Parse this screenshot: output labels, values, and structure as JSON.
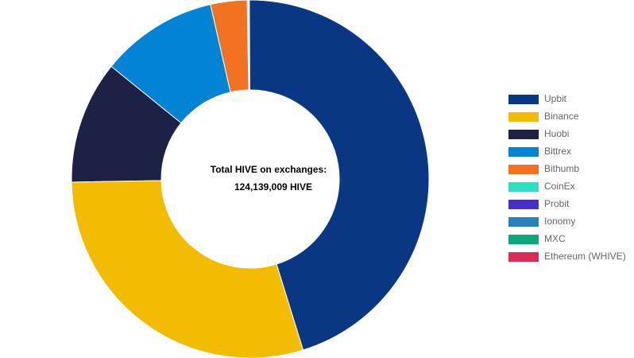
{
  "chart_data": {
    "type": "doughnut",
    "center_title": "Total HIVE on exchanges:",
    "center_value": "124,139,009 HIVE",
    "categories": [
      "Upbit",
      "Binance",
      "Huobi",
      "Bittrex",
      "Bithumb",
      "CoinEx",
      "Probit",
      "Ionomy",
      "MXC",
      "Ethereum (WHIVE)"
    ],
    "values": [
      45.3,
      29.5,
      11.1,
      10.6,
      3.3,
      0.1,
      0.05,
      0.02,
      0.02,
      0.01
    ],
    "colors": [
      "#0a3784",
      "#f3bc00",
      "#1e2146",
      "#0283d3",
      "#f37222",
      "#2ce0bf",
      "#4630c8",
      "#2a80b9",
      "#0aa777",
      "#dc2b57"
    ],
    "legend": "right"
  }
}
